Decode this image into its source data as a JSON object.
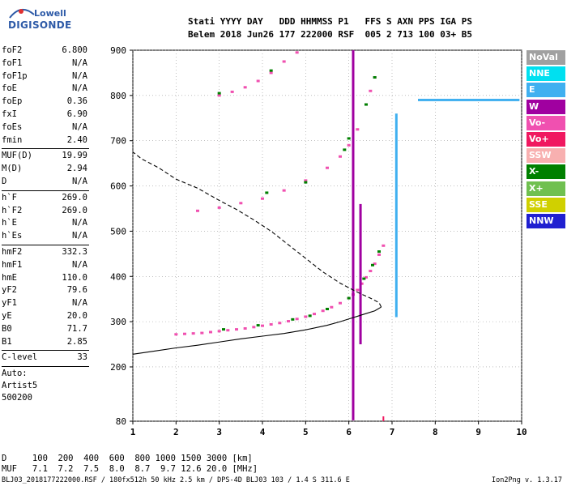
{
  "logo": {
    "line1": "Lowell",
    "line2": "DIGISONDE"
  },
  "header": {
    "line1": "Stati YYYY DAY   DDD HHMMSS P1   FFS S AXN PPS IGA PS",
    "line2": "Belem 2018 Jun26 177 222000 RSF  005 2 713 100 03+ B5"
  },
  "params_group1": [
    {
      "name": "foF2",
      "value": "6.800"
    },
    {
      "name": "foF1",
      "value": "N/A"
    },
    {
      "name": "foF1p",
      "value": "N/A"
    },
    {
      "name": "foE",
      "value": "N/A"
    },
    {
      "name": "foEp",
      "value": "0.36"
    },
    {
      "name": "fxI",
      "value": "6.90"
    },
    {
      "name": "foEs",
      "value": "N/A"
    },
    {
      "name": "fmin",
      "value": "2.40"
    }
  ],
  "params_group2": [
    {
      "name": "MUF(D)",
      "value": "19.99"
    },
    {
      "name": "M(D)",
      "value": "2.94"
    },
    {
      "name": "D",
      "value": "N/A"
    }
  ],
  "params_group3": [
    {
      "name": "h`F",
      "value": "269.0"
    },
    {
      "name": "h`F2",
      "value": "269.0"
    },
    {
      "name": "h`E",
      "value": "N/A"
    },
    {
      "name": "h`Es",
      "value": "N/A"
    }
  ],
  "params_group4": [
    {
      "name": "hmF2",
      "value": "332.3"
    },
    {
      "name": "hmF1",
      "value": "N/A"
    },
    {
      "name": "hmE",
      "value": "110.0"
    },
    {
      "name": "yF2",
      "value": "79.6"
    },
    {
      "name": "yF1",
      "value": "N/A"
    },
    {
      "name": "yE",
      "value": "20.0"
    },
    {
      "name": "B0",
      "value": "71.7"
    },
    {
      "name": "B1",
      "value": "2.85"
    }
  ],
  "params_group5": [
    {
      "name": "C-level",
      "value": "33"
    }
  ],
  "auto_text": [
    "Auto:",
    "Artist5",
    "500200"
  ],
  "legend": [
    {
      "label": "NoVal",
      "color": "#a0a0a0"
    },
    {
      "label": "NNE",
      "color": "#00e0f0"
    },
    {
      "label": "E",
      "color": "#40b0f0"
    },
    {
      "label": "W",
      "color": "#a000a0"
    },
    {
      "label": "Vo-",
      "color": "#f050b0"
    },
    {
      "label": "Vo+",
      "color": "#f01860"
    },
    {
      "label": "SSW",
      "color": "#f8b0b0"
    },
    {
      "label": "X-",
      "color": "#008000"
    },
    {
      "label": "X+",
      "color": "#70c050"
    },
    {
      "label": "SSE",
      "color": "#d0d000"
    },
    {
      "label": "NNW",
      "color": "#2020d0"
    }
  ],
  "footer": {
    "d_row": "D     100  200  400  600  800 1000 1500 3000 [km]",
    "muf_row": "MUF   7.1  7.2  7.5  8.0  8.7  9.7 12.6 20.0 [MHz]",
    "file": "BLJ03_2018177222000.RSF / 180fx512h 50 kHz 2.5 km / DPS-4D BLJ03 103 / 1.4 S 311.6 E",
    "version": "Ion2Png v. 1.3.17"
  },
  "chart_data": {
    "type": "scatter",
    "title": "",
    "xlabel": "",
    "ylabel": "",
    "xlim": [
      1,
      10
    ],
    "ylim": [
      80,
      900
    ],
    "xticks": [
      "1",
      "2",
      "3",
      "4",
      "5",
      "6",
      "7",
      "8",
      "9",
      "10"
    ],
    "yticks": [
      "80",
      "200",
      "300",
      "400",
      "500",
      "600",
      "700",
      "800",
      "900"
    ],
    "foF2_marker_MHz": 6.8,
    "series": [
      {
        "type": "echo",
        "color": "#f050b0",
        "points": [
          [
            2.0,
            272
          ],
          [
            2.2,
            273
          ],
          [
            2.4,
            274
          ],
          [
            2.6,
            275
          ],
          [
            2.8,
            277
          ],
          [
            3.0,
            279
          ],
          [
            3.2,
            281
          ],
          [
            3.4,
            283
          ],
          [
            3.6,
            285
          ],
          [
            3.8,
            288
          ],
          [
            4.0,
            291
          ],
          [
            4.2,
            294
          ],
          [
            4.4,
            297
          ],
          [
            4.6,
            301
          ],
          [
            4.8,
            306
          ],
          [
            5.0,
            311
          ],
          [
            5.2,
            317
          ],
          [
            5.4,
            324
          ],
          [
            5.6,
            332
          ],
          [
            5.8,
            341
          ],
          [
            6.0,
            352
          ],
          [
            6.1,
            360
          ],
          [
            6.2,
            370
          ],
          [
            6.3,
            384
          ],
          [
            6.4,
            398
          ],
          [
            6.5,
            412
          ],
          [
            6.6,
            428
          ],
          [
            6.7,
            448
          ],
          [
            6.8,
            468
          ]
        ]
      },
      {
        "type": "echo",
        "color": "#f050b0",
        "points": [
          [
            2.5,
            545
          ],
          [
            3.0,
            552
          ],
          [
            3.5,
            562
          ],
          [
            4.0,
            572
          ],
          [
            4.5,
            590
          ],
          [
            5.0,
            612
          ],
          [
            5.5,
            640
          ],
          [
            5.8,
            665
          ],
          [
            6.0,
            690
          ],
          [
            6.2,
            725
          ],
          [
            6.4,
            780
          ],
          [
            6.5,
            810
          ],
          [
            6.6,
            840
          ]
        ]
      },
      {
        "type": "echo",
        "color": "#f050b0",
        "points": [
          [
            3.0,
            800
          ],
          [
            3.3,
            808
          ],
          [
            3.6,
            818
          ],
          [
            3.9,
            832
          ],
          [
            4.2,
            850
          ],
          [
            4.5,
            875
          ],
          [
            4.8,
            895
          ]
        ]
      },
      {
        "type": "echo",
        "color": "#008000",
        "points": [
          [
            3.1,
            283
          ],
          [
            3.9,
            292
          ],
          [
            4.7,
            305
          ],
          [
            5.1,
            313
          ],
          [
            5.5,
            328
          ],
          [
            6.0,
            352
          ],
          [
            6.35,
            395
          ],
          [
            6.55,
            425
          ],
          [
            6.7,
            455
          ],
          [
            5.0,
            608
          ],
          [
            5.9,
            680
          ],
          [
            6.0,
            705
          ],
          [
            6.4,
            780
          ],
          [
            6.6,
            840
          ],
          [
            4.1,
            585
          ],
          [
            3.0,
            805
          ],
          [
            4.2,
            855
          ]
        ]
      },
      {
        "type": "vertical_trace",
        "color": "#a000a0",
        "x": 6.1,
        "ymin": 82,
        "ymax": 900
      },
      {
        "type": "vertical_trace",
        "color": "#a000a0",
        "x": 6.27,
        "ymin": 250,
        "ymax": 560
      },
      {
        "type": "vertical_trace",
        "color": "#40b0f0",
        "x": 7.1,
        "ymin": 310,
        "ymax": 760
      },
      {
        "type": "horizontal_trace",
        "color": "#40b0f0",
        "y": 790,
        "xmin": 7.6,
        "xmax": 9.95
      }
    ],
    "profile": [
      [
        1.0,
        228
      ],
      [
        1.5,
        235
      ],
      [
        2.0,
        242
      ],
      [
        2.5,
        248
      ],
      [
        3.0,
        255
      ],
      [
        3.5,
        262
      ],
      [
        4.0,
        268
      ],
      [
        4.5,
        274
      ],
      [
        5.0,
        282
      ],
      [
        5.5,
        292
      ],
      [
        5.8,
        300
      ],
      [
        6.0,
        306
      ],
      [
        6.2,
        312
      ],
      [
        6.4,
        318
      ],
      [
        6.6,
        324
      ],
      [
        6.75,
        332.3
      ],
      [
        6.7,
        342
      ],
      [
        6.5,
        352
      ],
      [
        6.2,
        365
      ],
      [
        5.8,
        385
      ],
      [
        5.4,
        410
      ],
      [
        5.0,
        440
      ],
      [
        4.6,
        470
      ],
      [
        4.2,
        500
      ],
      [
        3.8,
        525
      ],
      [
        3.4,
        548
      ],
      [
        3.0,
        568
      ],
      [
        2.5,
        595
      ],
      [
        2.0,
        615
      ],
      [
        1.6,
        640
      ],
      [
        1.2,
        660
      ],
      [
        1.0,
        675
      ]
    ],
    "grid": true
  }
}
